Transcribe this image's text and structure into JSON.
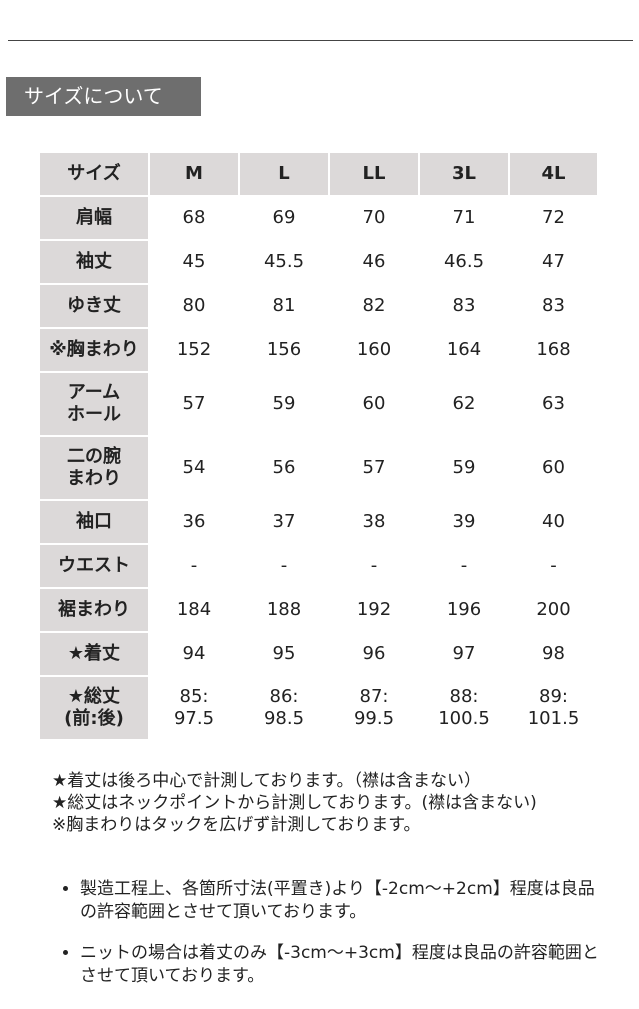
{
  "heading": "サイズについて",
  "table": {
    "header": [
      "サイズ",
      "M",
      "L",
      "LL",
      "3L",
      "4L"
    ],
    "rows": [
      [
        "肩幅",
        68,
        69,
        70,
        71,
        72
      ],
      [
        "袖丈",
        45,
        45.5,
        46,
        46.5,
        47
      ],
      [
        "ゆき丈",
        80,
        81,
        82,
        83,
        83
      ],
      [
        "※胸まわり",
        152,
        156,
        160,
        164,
        168
      ],
      [
        "アーム\nホール",
        57,
        59,
        60,
        62,
        63
      ],
      [
        "二の腕\nまわり",
        54,
        56,
        57,
        59,
        60
      ],
      [
        "袖口",
        36,
        37,
        38,
        39,
        40
      ],
      [
        "ウエスト",
        "-",
        "-",
        "-",
        "-",
        "-"
      ],
      [
        "裾まわり",
        184,
        188,
        192,
        196,
        200
      ],
      [
        "★着丈",
        94,
        95,
        96,
        97,
        98
      ],
      [
        "★総丈\n(前:後)",
        "85:\n97.5",
        "86:\n98.5",
        "87:\n99.5",
        "88:\n100.5",
        "89:\n101.5"
      ]
    ]
  },
  "notes": [
    "★着丈は後ろ中心で計測しております。（襟は含まない）",
    "★総丈はネックポイントから計測しております。(襟は含まない)",
    "※胸まわりはタックを広げず計測しております。"
  ],
  "bullets": [
    "製造工程上、各箇所寸法(平置き)より【-2cm～+2cm】程度は良品の許容範囲とさせて頂いております。",
    "ニットの場合は着丈のみ【-3cm～+3cm】程度は良品の許容範囲とさせて頂いております。"
  ]
}
